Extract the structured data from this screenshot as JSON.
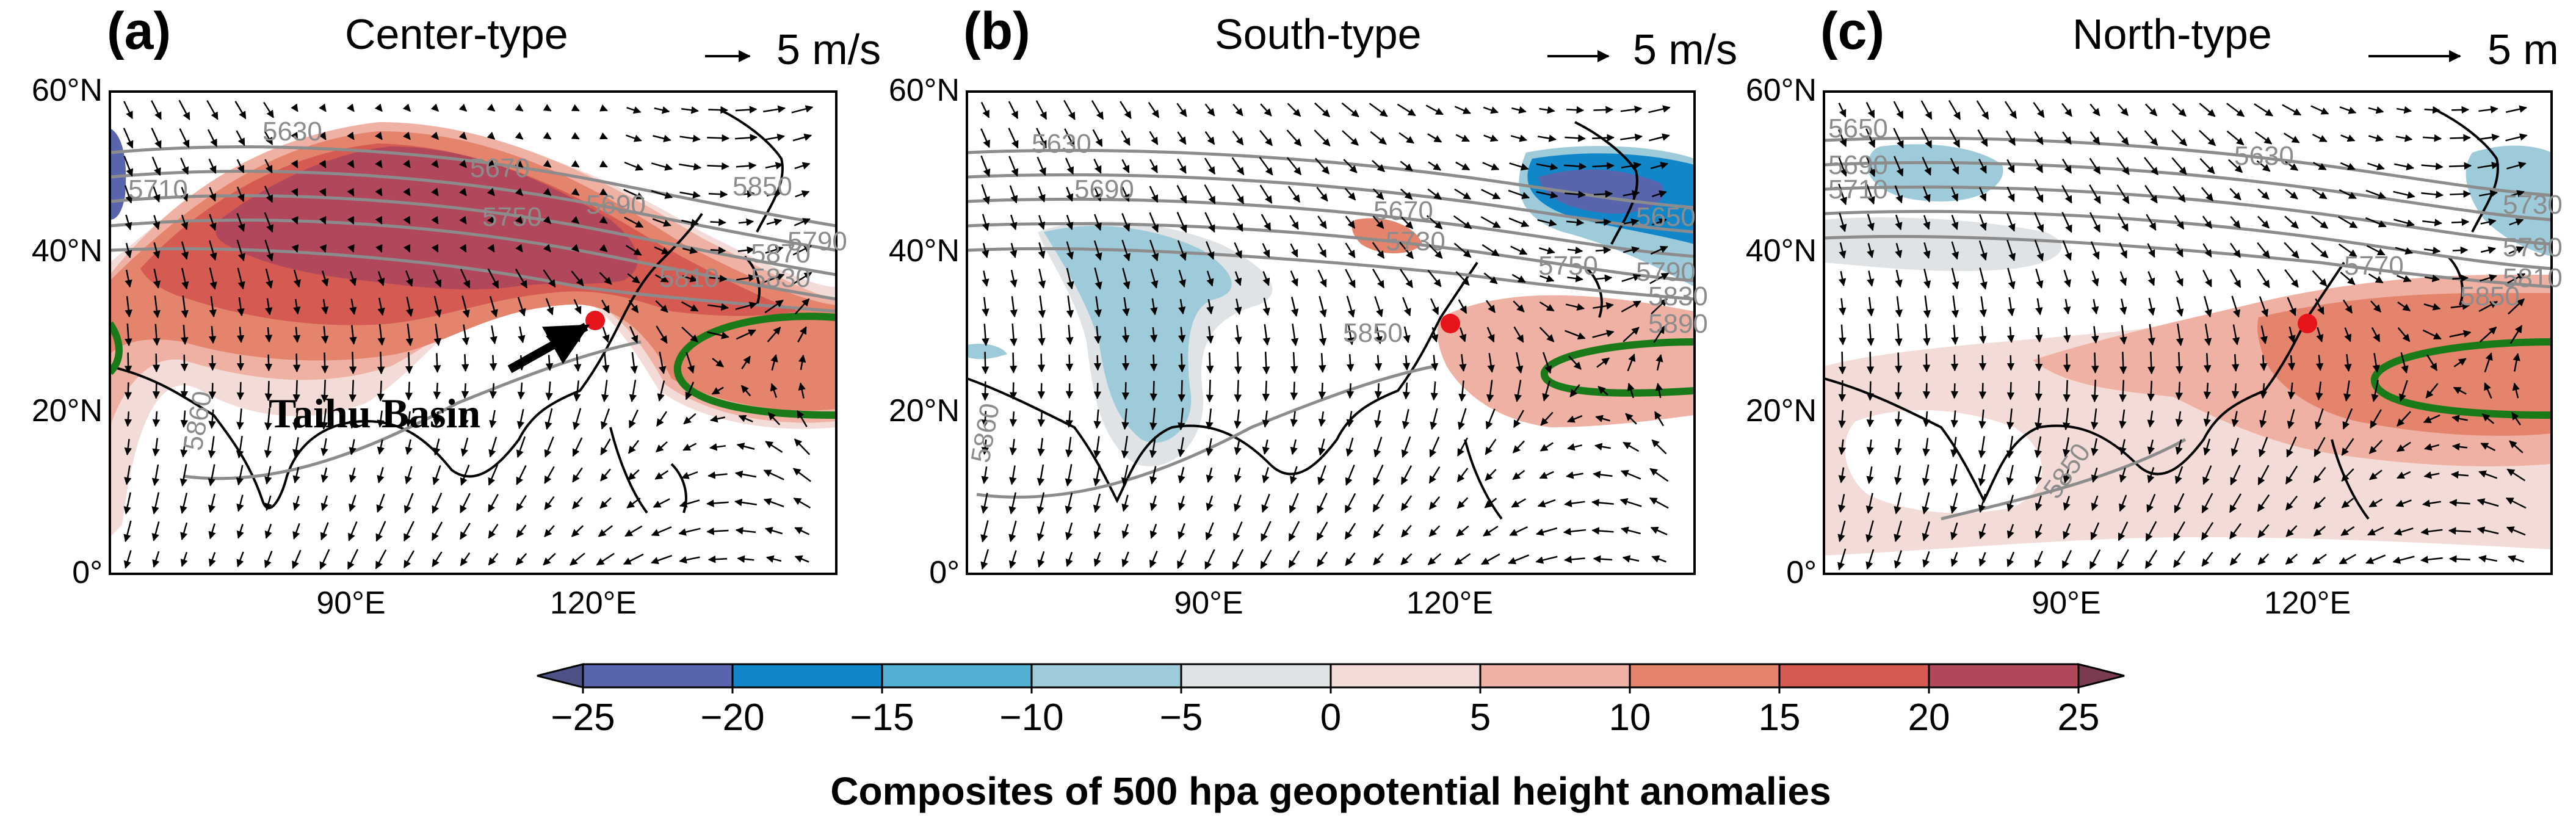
{
  "chart_data": [
    {
      "type": "heatmap",
      "panel": "(a)",
      "title": "Center-type",
      "vector_scale": "5 m/s",
      "annotation": "Taihu Basin",
      "contour_labels": [
        "5630",
        "5670",
        "5690",
        "5710",
        "5750",
        "5810",
        "5850",
        "5870",
        "5830",
        "5790",
        "5860"
      ],
      "xticks": [
        "90°E",
        "120°E"
      ],
      "yticks": [
        "60°N",
        "40°N",
        "20°N",
        "0°"
      ],
      "lon_range": [
        60,
        150
      ],
      "lat_range": [
        0,
        60
      ]
    },
    {
      "type": "heatmap",
      "panel": "(b)",
      "title": "South-type",
      "vector_scale": "5 m/s",
      "contour_labels": [
        "5630",
        "5690",
        "5670",
        "5730",
        "5650",
        "5750",
        "5790",
        "5860",
        "5850",
        "5830",
        "5890"
      ],
      "xticks": [
        "90°E",
        "120°E"
      ],
      "yticks": [
        "60°N",
        "40°N",
        "20°N",
        "0°"
      ],
      "lon_range": [
        60,
        150
      ],
      "lat_range": [
        0,
        60
      ]
    },
    {
      "type": "heatmap",
      "panel": "(c)",
      "title": "North-type",
      "vector_scale": "5 m",
      "contour_labels": [
        "5630",
        "5650",
        "5690",
        "5710",
        "5730",
        "5770",
        "5790",
        "5810",
        "5850",
        "5850"
      ],
      "xticks": [
        "90°E",
        "120°E"
      ],
      "yticks": [
        "60°N",
        "40°N",
        "20°N",
        "0°"
      ],
      "lon_range": [
        60,
        150
      ],
      "lat_range": [
        0,
        60
      ]
    }
  ],
  "colorbar": {
    "title": "Composites of 500 hpa geopotential height anomalies",
    "ticks": [
      "−25",
      "−20",
      "−15",
      "−10",
      "−5",
      "0",
      "5",
      "10",
      "15",
      "20",
      "25"
    ],
    "colors": [
      "#5865ad",
      "#1187c9",
      "#53b0d2",
      "#9ecbd9",
      "#dfe3e5",
      "#f3dcd7",
      "#efb1a3",
      "#e4846c",
      "#d55b52",
      "#b1475a"
    ],
    "under_color": "#4d5185",
    "over_color": "#7a3b52"
  },
  "colors": {
    "frame": "#000000",
    "contour": "#8c8c8c",
    "ridge": "#1a7a1a",
    "marker": "#e8141c"
  }
}
